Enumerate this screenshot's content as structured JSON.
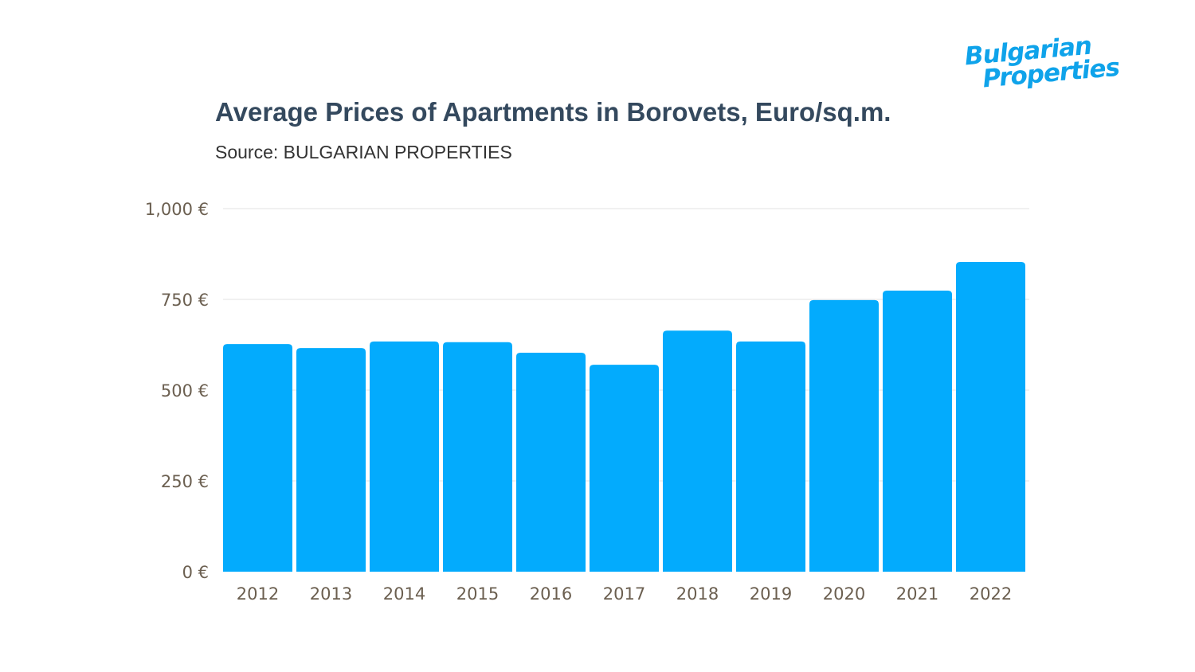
{
  "logo": {
    "line1": "Bulgarian",
    "line2": "Properties",
    "color": "#0fa3ea"
  },
  "chart_data": {
    "type": "bar",
    "title": "Average Prices of Apartments in Borovets, Euro/sq.m.",
    "subtitle": "Source: BULGARIAN PROPERTIES",
    "categories": [
      "2012",
      "2013",
      "2014",
      "2015",
      "2016",
      "2017",
      "2018",
      "2019",
      "2020",
      "2021",
      "2022"
    ],
    "values": [
      627,
      616,
      634,
      632,
      603,
      570,
      664,
      634,
      748,
      774,
      853
    ],
    "ylim": [
      0,
      1000
    ],
    "yticks": [
      0,
      250,
      500,
      750,
      1000
    ],
    "ytick_labels": [
      "0 €",
      "250 €",
      "500 €",
      "750 €",
      "1,000 €"
    ],
    "grid": true,
    "bar_color": "#03abfd",
    "xlabel": "",
    "ylabel": ""
  }
}
